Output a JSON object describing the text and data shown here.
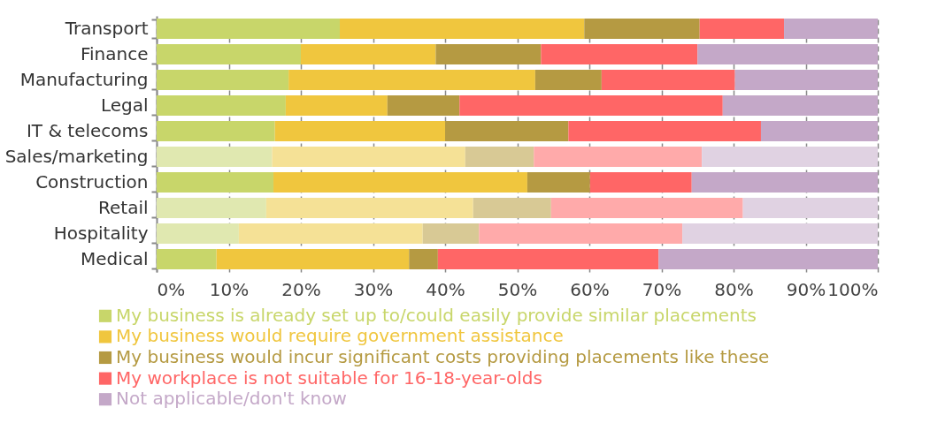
{
  "chart_data": {
    "type": "bar",
    "orientation": "horizontal",
    "stacked": true,
    "categories": [
      "Transport",
      "Finance",
      "Manufacturing",
      "Legal",
      "IT & telecoms",
      "Sales/marketing",
      "Construction",
      "Retail",
      "Hospitality",
      "Medical"
    ],
    "series": [
      {
        "name": "My business is already set up to/could easily provide similar placements",
        "color": "#c8d66a",
        "colors": [
          "#c8d66a",
          "#c8d66a",
          "#c8d66a",
          "#c8d66a",
          "#c8d66a",
          "#e0e8b0",
          "#c8d66a",
          "#e0e8b0",
          "#e0e8b0",
          "#c8d66a"
        ],
        "values": [
          25.4,
          20.0,
          18.3,
          17.9,
          16.4,
          16.0,
          16.2,
          15.2,
          11.4,
          8.3
        ]
      },
      {
        "name": "My business would require government assistance",
        "color": "#f0c63e",
        "colors": [
          "#f0c63e",
          "#f0c63e",
          "#f0c63e",
          "#f0c63e",
          "#f0c63e",
          "#f5e196",
          "#f0c63e",
          "#f5e196",
          "#f5e196",
          "#f0c63e"
        ],
        "values": [
          33.9,
          18.7,
          34.2,
          14.1,
          23.6,
          26.8,
          35.2,
          28.7,
          25.5,
          26.7
        ]
      },
      {
        "name": "My business would incur significant costs providing placements like these",
        "color": "#b59a42",
        "colors": [
          "#b59a42",
          "#b59a42",
          "#b59a42",
          "#b59a42",
          "#b59a42",
          "#d8c995",
          "#b59a42",
          "#d8c995",
          "#d8c995",
          "#b59a42"
        ],
        "values": [
          16.0,
          14.6,
          9.2,
          10.0,
          17.1,
          9.5,
          8.7,
          10.8,
          7.8,
          4.0
        ]
      },
      {
        "name": "My workplace is not suitable for 16-18-year-olds",
        "color": "#ff6666",
        "colors": [
          "#ff6666",
          "#ff6666",
          "#ff6666",
          "#ff6666",
          "#ff6666",
          "#ffaaaa",
          "#ff6666",
          "#ffaaaa",
          "#ffaaaa",
          "#ff6666"
        ],
        "values": [
          11.7,
          21.7,
          18.5,
          36.5,
          26.7,
          23.3,
          14.1,
          26.6,
          28.2,
          30.6
        ]
      },
      {
        "name": "Not applicable/don't know",
        "color": "#c4a8c8",
        "colors": [
          "#c4a8c8",
          "#c4a8c8",
          "#c4a8c8",
          "#c4a8c8",
          "#c4a8c8",
          "#e0d2e2",
          "#c4a8c8",
          "#e0d2e2",
          "#e0d2e2",
          "#c4a8c8"
        ],
        "values": [
          13.0,
          25.0,
          19.8,
          21.5,
          16.2,
          24.4,
          25.8,
          18.7,
          27.1,
          30.4
        ]
      }
    ],
    "xlim": [
      0,
      100
    ],
    "xticks": [
      {
        "value": 0,
        "label": "0%"
      },
      {
        "value": 10,
        "label": "10%"
      },
      {
        "value": 20,
        "label": "20%"
      },
      {
        "value": 30,
        "label": "30%"
      },
      {
        "value": 40,
        "label": "40%"
      },
      {
        "value": 50,
        "label": "50%"
      },
      {
        "value": 60,
        "label": "60%"
      },
      {
        "value": 70,
        "label": "70%"
      },
      {
        "value": 80,
        "label": "80%"
      },
      {
        "value": 90,
        "label": "90%"
      },
      {
        "value": 100,
        "label": "100%"
      }
    ],
    "grid": "x",
    "legend": "bottom"
  }
}
